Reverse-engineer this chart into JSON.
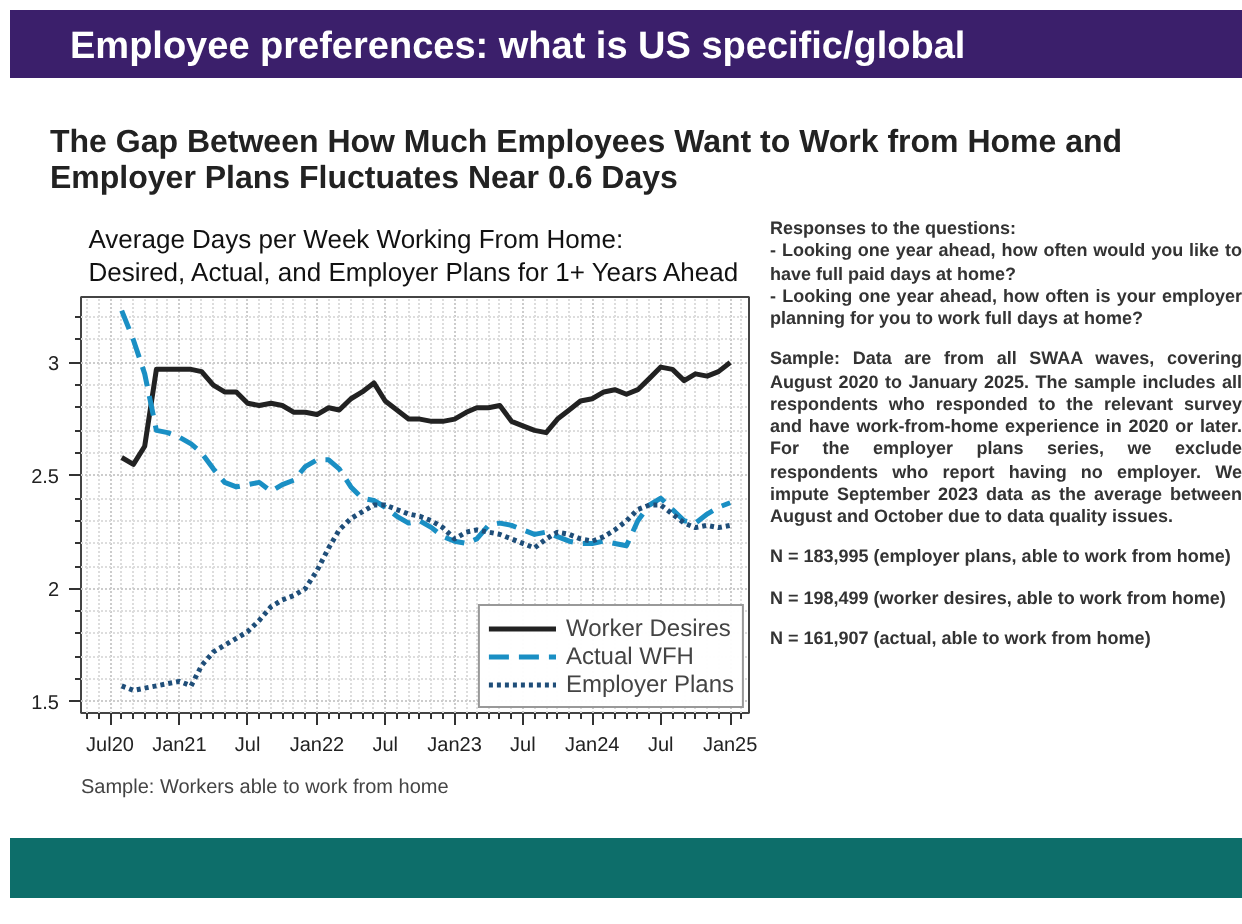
{
  "chart_data": {
    "type": "line",
    "title": "Average Days per Week Working From Home:\nDesired, Actual, and Employer Plans for 1+ Years Ahead",
    "subtitle": "The Gap Between How Much Employees Want to Work from Home and Employer Plans Fluctuates Near 0.6 Days",
    "annotations": [
      "Employee preferences: what is US specific/global",
      "Sample: Workers able to work from home",
      "Responses to the questions:\n-  Looking one year ahead, how often would you like to have full paid days at home?\n-  Looking one year ahead, how often is your employer planning for you to work full days at home?",
      "Sample: Data are from all SWAA waves, covering August 2020 to January 2025. The sample includes all respondents who responded to the relevant survey and have work-from-home experience in 2020 or later. For the employer plans series, we exclude respondents who report having no employer. We impute September 2023 data as the average between August and October due to data quality issues.",
      "N = 183,995 (employer plans, able to work from home)",
      "N = 198,499 (worker desires, able to work from home)",
      "N = 161,907 (actual, able to work from home)"
    ],
    "x": [
      "2020-08",
      "2020-09",
      "2020-10",
      "2020-11",
      "2020-12",
      "2021-01",
      "2021-02",
      "2021-03",
      "2021-04",
      "2021-05",
      "2021-06",
      "2021-07",
      "2021-08",
      "2021-09",
      "2021-10",
      "2021-11",
      "2021-12",
      "2022-01",
      "2022-02",
      "2022-03",
      "2022-04",
      "2022-05",
      "2022-06",
      "2022-07",
      "2022-08",
      "2022-09",
      "2022-10",
      "2022-11",
      "2022-12",
      "2023-01",
      "2023-02",
      "2023-03",
      "2023-04",
      "2023-05",
      "2023-06",
      "2023-07",
      "2023-08",
      "2023-09",
      "2023-10",
      "2023-11",
      "2023-12",
      "2024-01",
      "2024-02",
      "2024-03",
      "2024-04",
      "2024-05",
      "2024-06",
      "2024-07",
      "2024-08",
      "2024-09",
      "2024-10",
      "2024-11",
      "2024-12",
      "2025-01"
    ],
    "series": [
      {
        "name": "Worker Desires",
        "color": "#222222",
        "line_style": "solid",
        "values": [
          2.58,
          2.55,
          2.63,
          2.97,
          2.97,
          2.97,
          2.97,
          2.96,
          2.9,
          2.87,
          2.87,
          2.82,
          2.81,
          2.82,
          2.81,
          2.78,
          2.78,
          2.77,
          2.8,
          2.79,
          2.84,
          2.87,
          2.91,
          2.83,
          2.79,
          2.75,
          2.75,
          2.74,
          2.74,
          2.75,
          2.78,
          2.8,
          2.8,
          2.81,
          2.74,
          2.72,
          2.7,
          2.69,
          2.75,
          2.79,
          2.83,
          2.84,
          2.87,
          2.88,
          2.86,
          2.88,
          2.93,
          2.98,
          2.97,
          2.92,
          2.95,
          2.94,
          2.96,
          3.0
        ]
      },
      {
        "name": "Actual WFH",
        "color": "#1a8fc4",
        "line_style": "dashed",
        "values": [
          3.23,
          3.1,
          2.95,
          2.7,
          2.69,
          2.67,
          2.64,
          2.6,
          2.53,
          2.47,
          2.45,
          2.46,
          2.47,
          2.43,
          2.46,
          2.48,
          2.54,
          2.57,
          2.57,
          2.53,
          2.45,
          2.4,
          2.39,
          2.36,
          2.32,
          2.29,
          2.3,
          2.27,
          2.23,
          2.21,
          2.2,
          2.22,
          2.28,
          2.29,
          2.28,
          2.26,
          2.24,
          2.25,
          2.23,
          2.21,
          2.2,
          2.2,
          2.21,
          2.2,
          2.19,
          2.3,
          2.37,
          2.4,
          2.35,
          2.3,
          2.29,
          2.33,
          2.36,
          2.38
        ]
      },
      {
        "name": "Employer Plans",
        "color": "#1f4e79",
        "line_style": "dotted",
        "values": [
          1.57,
          1.55,
          1.56,
          1.57,
          1.58,
          1.59,
          1.57,
          1.66,
          1.72,
          1.75,
          1.78,
          1.81,
          1.86,
          1.92,
          1.95,
          1.97,
          2.0,
          2.08,
          2.18,
          2.26,
          2.31,
          2.34,
          2.37,
          2.37,
          2.35,
          2.33,
          2.32,
          2.3,
          2.27,
          2.22,
          2.25,
          2.26,
          2.25,
          2.24,
          2.22,
          2.2,
          2.18,
          2.22,
          2.25,
          2.24,
          2.22,
          2.21,
          2.23,
          2.26,
          2.3,
          2.35,
          2.37,
          2.37,
          2.33,
          2.29,
          2.27,
          2.28,
          2.27,
          2.28
        ]
      }
    ],
    "xlim": [
      "2020-04-15",
      "2025-02-20"
    ],
    "xticks": [
      {
        "value": "2020-07",
        "label": "Jul20"
      },
      {
        "value": "2021-01",
        "label": "Jan21"
      },
      {
        "value": "2021-07",
        "label": "Jul"
      },
      {
        "value": "2022-01",
        "label": "Jan22"
      },
      {
        "value": "2022-07",
        "label": "Jul"
      },
      {
        "value": "2023-01",
        "label": "Jan23"
      },
      {
        "value": "2023-07",
        "label": "Jul"
      },
      {
        "value": "2024-01",
        "label": "Jan24"
      },
      {
        "value": "2024-07",
        "label": "Jul"
      },
      {
        "value": "2025-01",
        "label": "Jan25"
      }
    ],
    "ylim": [
      1.45,
      3.29
    ],
    "yticks": [
      1.5,
      2,
      2.5,
      3
    ],
    "grid": true,
    "legend": "bottom right"
  }
}
